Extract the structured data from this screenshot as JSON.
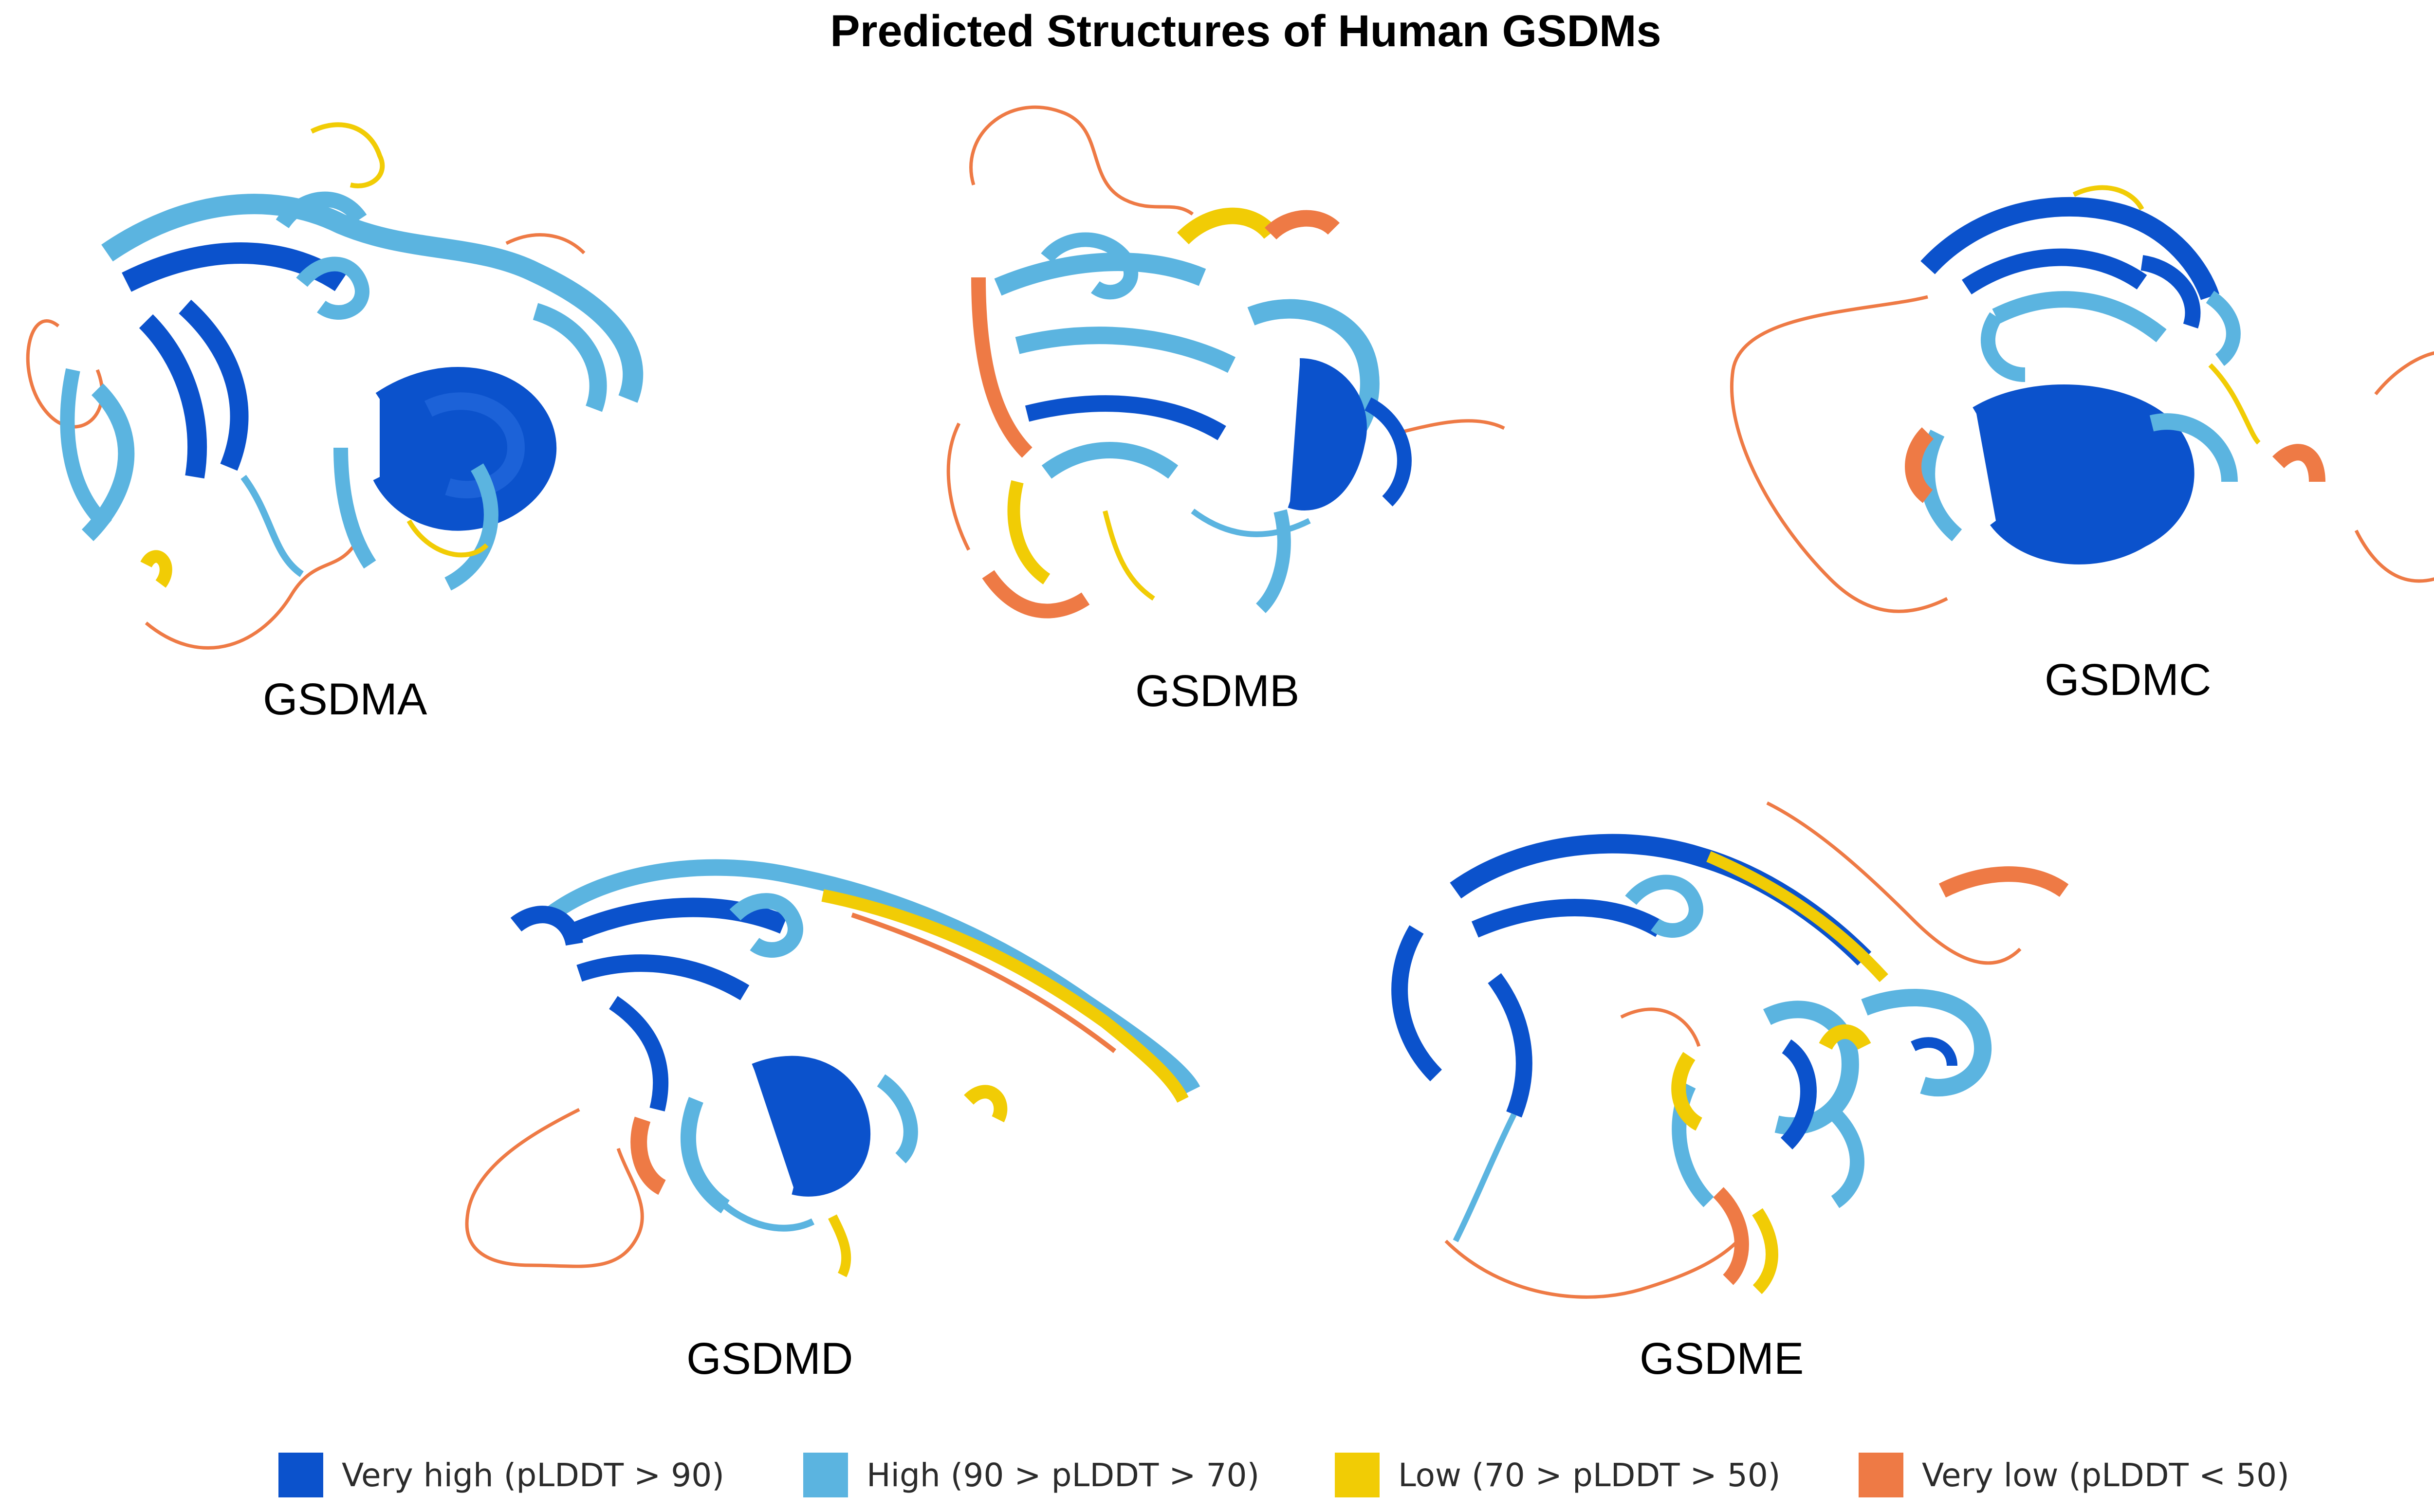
{
  "title": "Predicted Structures of Human GSDMs",
  "colors": {
    "very_high": "#0b52cc",
    "high": "#5bb4e0",
    "low": "#f1cc05",
    "very_low": "#ee7a45"
  },
  "structures": [
    {
      "name": "GSDMA"
    },
    {
      "name": "GSDMB"
    },
    {
      "name": "GSDMC"
    },
    {
      "name": "GSDMD"
    },
    {
      "name": "GSDME"
    }
  ],
  "legend": [
    {
      "label": "Very high (pLDDT > 90)",
      "color": "#0b52cc"
    },
    {
      "label": "High (90 > pLDDT > 70)",
      "color": "#5bb4e0"
    },
    {
      "label": "Low (70 > pLDDT > 50)",
      "color": "#f1cc05"
    },
    {
      "label": "Very low (pLDDT < 50)",
      "color": "#ee7a45"
    }
  ]
}
